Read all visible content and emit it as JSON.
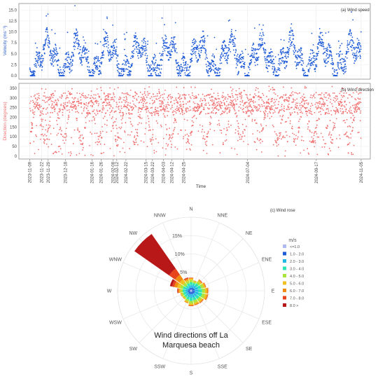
{
  "chart_data": [
    {
      "type": "scatter",
      "panel_label": "(a) Wind speed",
      "ylabel": "Velocity (ms⁻¹)",
      "yticks": [
        0.0,
        2.5,
        5.0,
        7.5,
        10.0,
        12.5,
        15.0
      ],
      "ylim": [
        -0.8,
        16.5
      ],
      "color": "#1f5bd6",
      "grid": true,
      "date_ticks": [
        "2023-11-09",
        "2023-11-22",
        "2023-11-29",
        "2023-12-18",
        "2024-01-16",
        "2024-01-26",
        "2024-02-08",
        "2024-02-12",
        "2024-02-22",
        "2024-03-15",
        "2024-03-22",
        "2024-04-03",
        "2024-04-12",
        "2024-04-25",
        "2024-07-04",
        "2024-09-17",
        "2024-11-05"
      ],
      "xlim": [
        "2023-10-28",
        "2024-11-15"
      ],
      "note": "hourly samples 2023-11-09 to 2024-11-05, mostly 0-8 m/s with peaks near 16 m/s"
    },
    {
      "type": "scatter",
      "panel_label": "(b) Wind direction",
      "ylabel": "Direction (degrees)",
      "yticks": [
        0,
        50,
        100,
        150,
        200,
        250,
        300,
        350
      ],
      "ylim": [
        -15,
        375
      ],
      "color": "#f07070",
      "grid": true,
      "xlabel": "Time",
      "date_ticks": [
        "2023-11-09",
        "2023-11-22",
        "2023-11-29",
        "2023-12-18",
        "2024-01-16",
        "2024-01-26",
        "2024-02-08",
        "2024-02-12",
        "2024-02-22",
        "2024-03-15",
        "2024-03-22",
        "2024-04-03",
        "2024-04-12",
        "2024-04-25",
        "2024-07-04",
        "2024-09-17",
        "2024-11-05"
      ],
      "xlim": [
        "2023-10-28",
        "2024-11-15"
      ]
    },
    {
      "type": "windrose",
      "panel_label": "(c) Wind rose",
      "directions": [
        "N",
        "NNE",
        "NE",
        "ENE",
        "E",
        "ESE",
        "SE",
        "SSE",
        "S",
        "SSW",
        "SW",
        "WSW",
        "W",
        "WNW",
        "NW",
        "NNW"
      ],
      "radial_ticks_pct": [
        "5%",
        "10%",
        "15%"
      ],
      "rmax_pct": 20,
      "legend_title": "m/s",
      "bins": [
        "<=1.0",
        "1.0 - 2.0",
        "2.0 - 3.0",
        "3.0 - 4.0",
        "4.0 - 5.0",
        "5.0 - 6.0",
        "6.0 - 7.0",
        "7.0 - 8.0",
        "8.0 >"
      ],
      "bin_colors": [
        "#b0b8f0",
        "#1b5bd6",
        "#22b8e6",
        "#2ee6b4",
        "#a8e63c",
        "#f0c020",
        "#f08c10",
        "#e8441c",
        "#b81818"
      ],
      "frequencies_pct": [
        [
          0.3,
          0.5,
          0.7,
          0.8,
          0.6,
          0.4,
          0.2,
          0.1,
          0.0
        ],
        [
          0.3,
          0.6,
          0.7,
          0.6,
          0.4,
          0.2,
          0.1,
          0.0,
          0.0
        ],
        [
          0.3,
          0.6,
          0.8,
          0.8,
          0.6,
          0.4,
          0.2,
          0.1,
          0.0
        ],
        [
          0.3,
          0.7,
          0.9,
          0.9,
          0.7,
          0.4,
          0.2,
          0.1,
          0.0
        ],
        [
          0.3,
          0.7,
          1.0,
          1.0,
          0.8,
          0.5,
          0.3,
          0.1,
          0.0
        ],
        [
          0.3,
          0.8,
          1.0,
          1.0,
          0.8,
          0.5,
          0.3,
          0.1,
          0.0
        ],
        [
          0.3,
          0.7,
          0.9,
          0.9,
          0.7,
          0.4,
          0.2,
          0.1,
          0.0
        ],
        [
          0.3,
          0.7,
          0.9,
          0.8,
          0.7,
          0.4,
          0.2,
          0.1,
          0.0
        ],
        [
          0.3,
          0.7,
          0.9,
          0.9,
          0.7,
          0.4,
          0.2,
          0.1,
          0.0
        ],
        [
          0.3,
          0.7,
          0.8,
          0.7,
          0.5,
          0.3,
          0.2,
          0.0,
          0.0
        ],
        [
          0.3,
          0.6,
          0.7,
          0.6,
          0.4,
          0.2,
          0.1,
          0.0,
          0.0
        ],
        [
          0.3,
          0.6,
          0.7,
          0.6,
          0.4,
          0.3,
          0.1,
          0.0,
          0.0
        ],
        [
          0.3,
          0.6,
          0.7,
          0.7,
          0.5,
          0.4,
          0.3,
          0.2,
          0.1
        ],
        [
          0.3,
          0.5,
          0.7,
          0.8,
          0.8,
          0.8,
          0.8,
          0.6,
          0.6
        ],
        [
          0.2,
          0.4,
          0.5,
          0.7,
          0.9,
          1.1,
          1.5,
          2.0,
          11.5
        ],
        [
          0.3,
          0.5,
          0.6,
          0.7,
          0.6,
          0.4,
          0.3,
          0.2,
          0.1
        ]
      ],
      "overlay_text": [
        "Wind directions off La",
        "Marquesa beach"
      ]
    }
  ]
}
